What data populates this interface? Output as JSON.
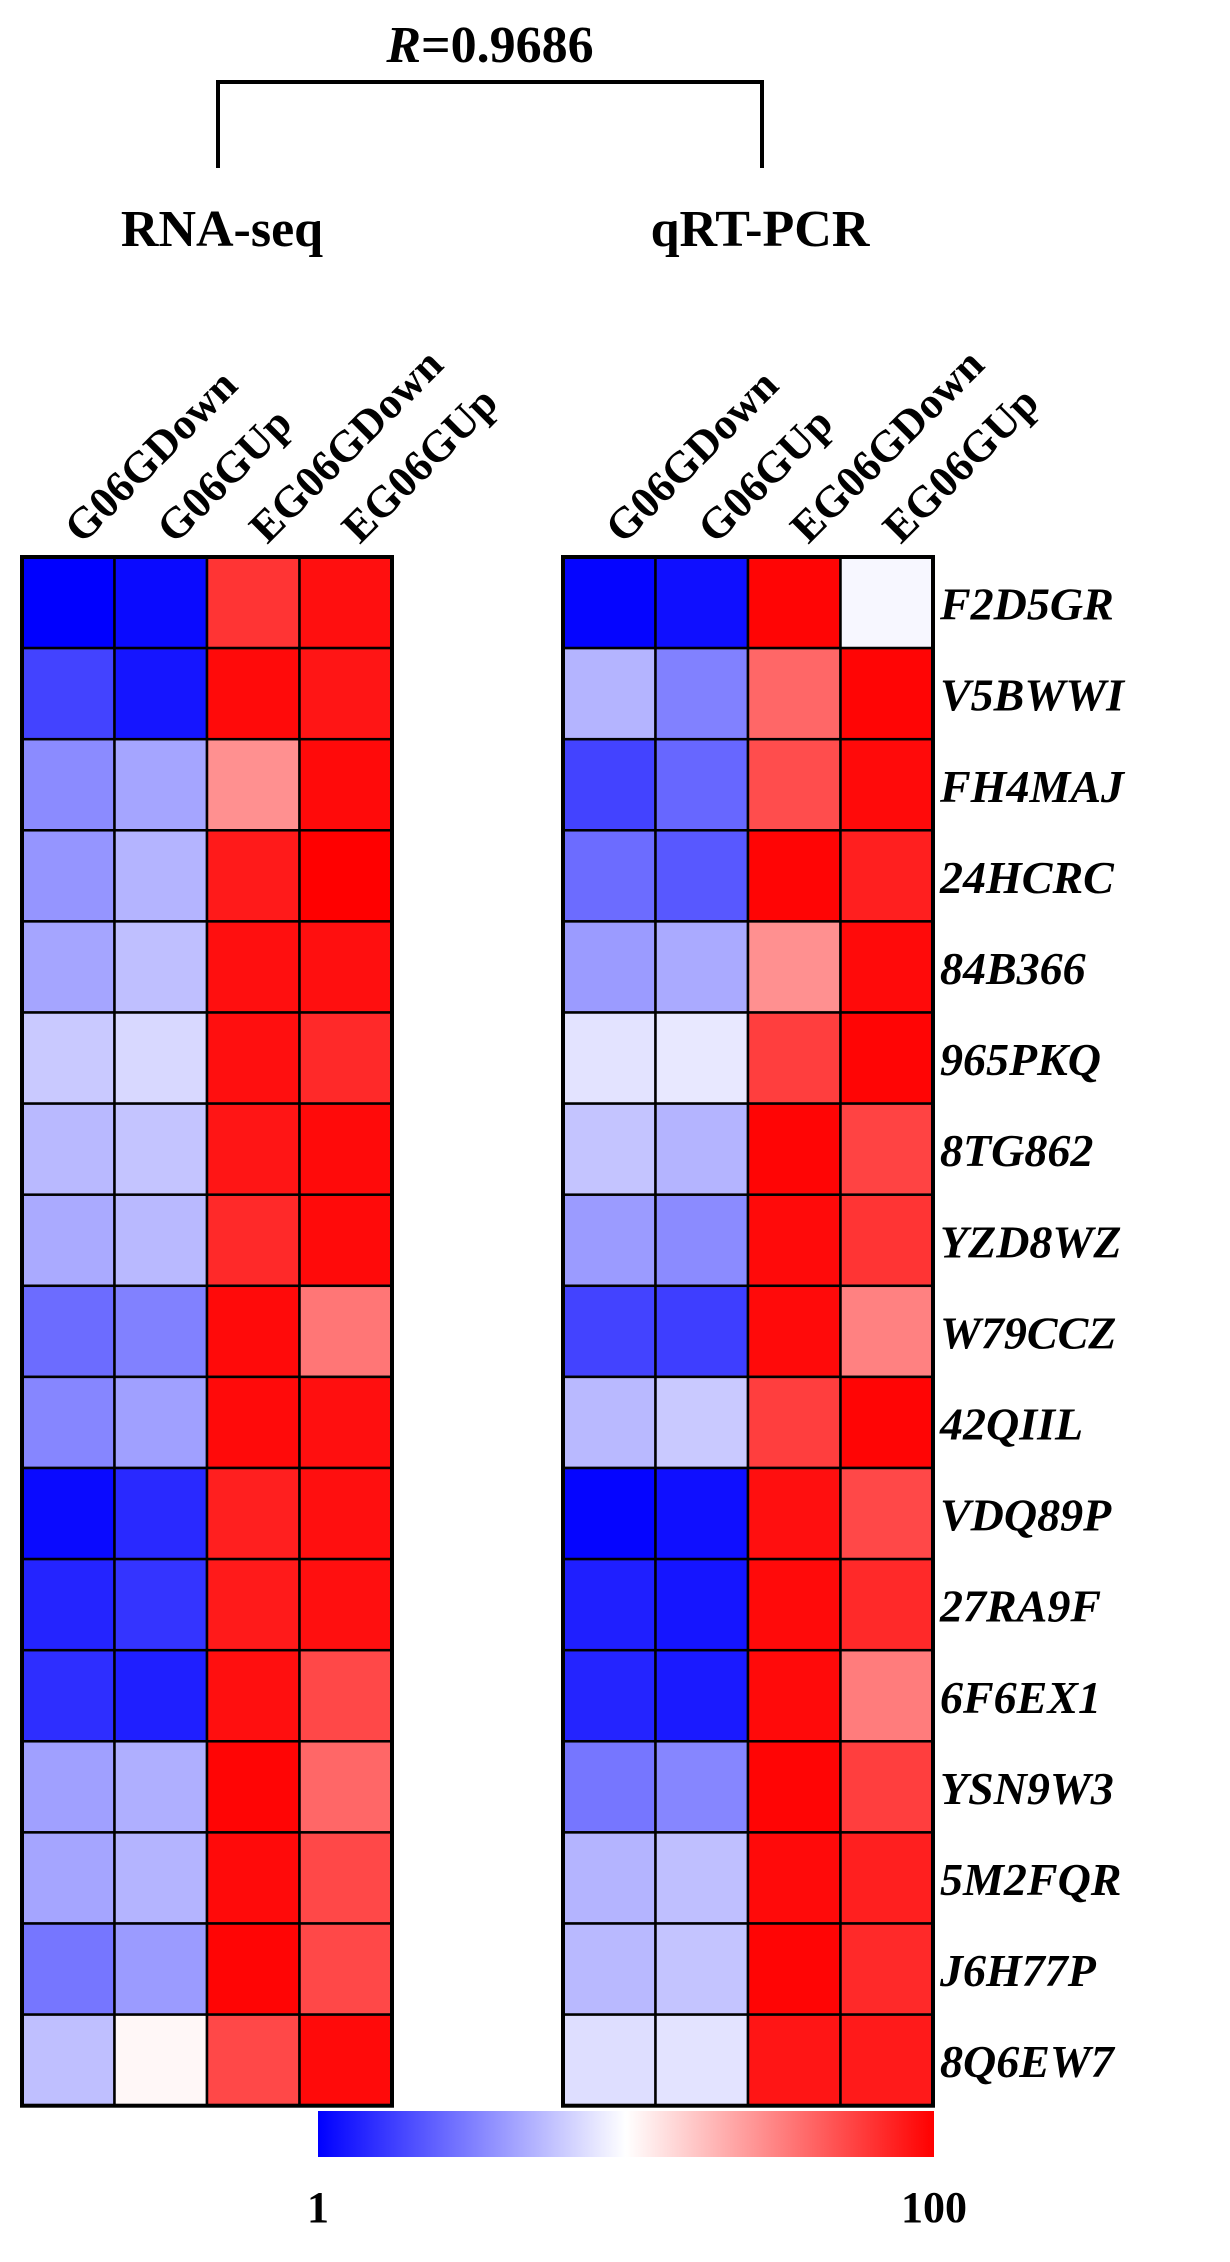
{
  "chart_data": {
    "type": "heatmap",
    "title": "R =0.9686",
    "title_parts": {
      "symbol": "R",
      "value": "=0.9686"
    },
    "panel_titles": [
      "RNA-seq",
      "qRT-PCR"
    ],
    "genes": [
      "F2D5GR",
      "V5BWWI",
      "FH4MAJ",
      "24HCRC",
      "84B366",
      "965PKQ",
      "8TG862",
      "YZD8WZ",
      "W79CCZ",
      "42QIIL",
      "VDQ89P",
      "27RA9F",
      "6F6EX1",
      "YSN9W3",
      "5M2FQR",
      "J6H77P",
      "8Q6EW7"
    ],
    "panels": [
      {
        "name": "RNA-seq",
        "columns": [
          "G06GDown",
          "G06GUp",
          "EG06GDown",
          "EG06GUp"
        ],
        "values": [
          [
            1,
            3,
            90,
            97
          ],
          [
            14,
            5,
            98,
            96
          ],
          [
            28,
            33,
            72,
            98
          ],
          [
            30,
            36,
            95,
            100
          ],
          [
            33,
            38,
            97,
            97
          ],
          [
            40,
            43,
            97,
            92
          ],
          [
            37,
            39,
            96,
            98
          ],
          [
            34,
            37,
            92,
            98
          ],
          [
            22,
            26,
            98,
            77
          ],
          [
            27,
            32,
            98,
            97
          ],
          [
            3,
            9,
            94,
            97
          ],
          [
            8,
            11,
            95,
            97
          ],
          [
            10,
            7,
            97,
            86
          ],
          [
            32,
            35,
            99,
            80
          ],
          [
            33,
            36,
            98,
            86
          ],
          [
            24,
            31,
            99,
            86
          ],
          [
            38,
            52,
            86,
            98
          ]
        ]
      },
      {
        "name": "qRT-PCR",
        "columns": [
          "G06GDown",
          "G06GUp",
          "EG06GDown",
          "EG06GUp"
        ],
        "values": [
          [
            2,
            4,
            99,
            49
          ],
          [
            36,
            26,
            80,
            99
          ],
          [
            14,
            21,
            85,
            98
          ],
          [
            22,
            18,
            99,
            94
          ],
          [
            31,
            34,
            72,
            98
          ],
          [
            45,
            46,
            88,
            99
          ],
          [
            39,
            36,
            99,
            87
          ],
          [
            31,
            28,
            98,
            90
          ],
          [
            14,
            13,
            98,
            75
          ],
          [
            37,
            40,
            88,
            99
          ],
          [
            2,
            4,
            97,
            86
          ],
          [
            7,
            5,
            98,
            92
          ],
          [
            8,
            6,
            98,
            76
          ],
          [
            24,
            27,
            99,
            88
          ],
          [
            36,
            38,
            98,
            94
          ],
          [
            37,
            39,
            99,
            92
          ],
          [
            44,
            45,
            96,
            95
          ]
        ]
      }
    ],
    "colorbar": {
      "min": 1,
      "max": 100,
      "min_label": "1",
      "max_label": "100"
    },
    "colors": {
      "low": "#0000ff",
      "mid": "#ffffff",
      "high": "#ff0000"
    }
  }
}
